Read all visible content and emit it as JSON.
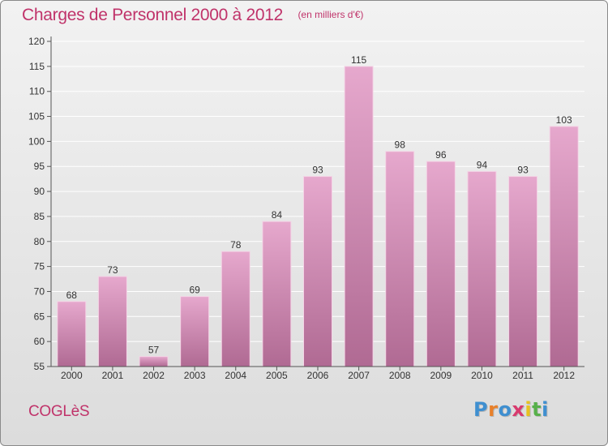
{
  "chart_data": {
    "type": "bar",
    "title": "Charges de Personnel 2000 à 2012",
    "subtitle": "(en milliers d'€)",
    "categories": [
      "2000",
      "2001",
      "2002",
      "2003",
      "2004",
      "2005",
      "2006",
      "2007",
      "2008",
      "2009",
      "2010",
      "2011",
      "2012"
    ],
    "values": [
      68,
      73,
      57,
      69,
      78,
      84,
      93,
      115,
      98,
      96,
      94,
      93,
      103
    ],
    "ylim": [
      55,
      120
    ],
    "yticks": [
      55,
      60,
      65,
      70,
      75,
      80,
      85,
      90,
      95,
      100,
      105,
      110,
      115,
      120
    ],
    "grid": true,
    "bar_color": "#d680ad"
  },
  "footer": {
    "town": "COGLèS",
    "logo_letters": [
      "P",
      "r",
      "o",
      "x",
      "i",
      "t",
      "i"
    ],
    "logo_colors": [
      "#3f8fd0",
      "#e8802a",
      "#3f8fd0",
      "#d83a6e",
      "#e8c21f",
      "#57b04a",
      "#3f8fd0"
    ]
  }
}
